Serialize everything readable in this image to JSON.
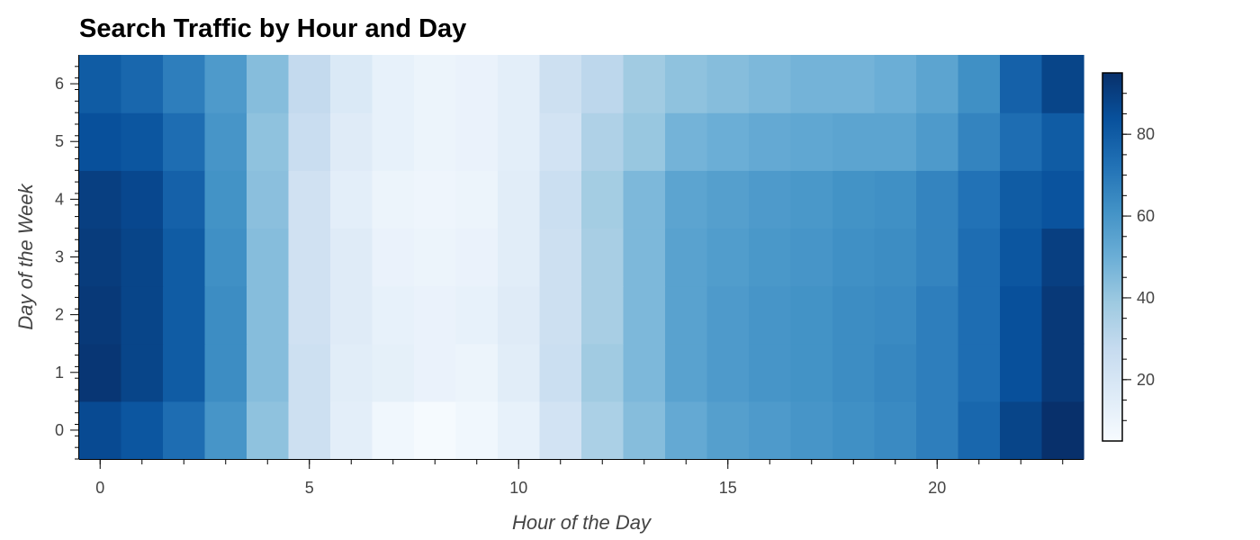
{
  "chart_data": {
    "type": "heatmap",
    "title": "Search Traffic by Hour and Day",
    "xlabel": "Hour of the Day",
    "ylabel": "Day of the Week",
    "x": [
      0,
      1,
      2,
      3,
      4,
      5,
      6,
      7,
      8,
      9,
      10,
      11,
      12,
      13,
      14,
      15,
      16,
      17,
      18,
      19,
      20,
      21,
      22,
      23
    ],
    "y": [
      0,
      1,
      2,
      3,
      4,
      5,
      6
    ],
    "x_ticks": [
      "0",
      "5",
      "10",
      "15",
      "20"
    ],
    "y_ticks": [
      "0",
      "1",
      "2",
      "3",
      "4",
      "5",
      "6"
    ],
    "xlim": [
      -0.5,
      23.5
    ],
    "ylim": [
      -0.5,
      6.5
    ],
    "color_range": [
      5,
      95
    ],
    "colorbar_ticks": [
      "20",
      "40",
      "60",
      "80"
    ],
    "colormap": [
      "#f7fbff",
      "#deebf7",
      "#c6dbef",
      "#9ecae1",
      "#6baed6",
      "#4292c6",
      "#2171b5",
      "#08519c",
      "#08306b"
    ],
    "grid": false,
    "values": [
      [
        86,
        82,
        74,
        60,
        42,
        24,
        14,
        8,
        6,
        8,
        12,
        22,
        35,
        44,
        52,
        56,
        58,
        60,
        62,
        64,
        68,
        76,
        88,
        95
      ],
      [
        93,
        88,
        80,
        63,
        44,
        24,
        15,
        13,
        11,
        10,
        15,
        25,
        38,
        46,
        55,
        58,
        60,
        61,
        63,
        65,
        68,
        74,
        84,
        92
      ],
      [
        92,
        88,
        80,
        63,
        44,
        23,
        16,
        12,
        11,
        12,
        16,
        24,
        36,
        46,
        55,
        58,
        60,
        61,
        63,
        64,
        68,
        74,
        84,
        92
      ],
      [
        91,
        88,
        80,
        62,
        44,
        23,
        16,
        11,
        10,
        11,
        15,
        24,
        36,
        46,
        55,
        57,
        59,
        60,
        62,
        63,
        66,
        74,
        82,
        90
      ],
      [
        90,
        87,
        78,
        61,
        43,
        23,
        14,
        10,
        9,
        10,
        15,
        25,
        37,
        46,
        54,
        56,
        58,
        59,
        61,
        62,
        66,
        72,
        80,
        83
      ],
      [
        84,
        82,
        74,
        60,
        42,
        26,
        16,
        12,
        10,
        11,
        14,
        22,
        34,
        40,
        48,
        50,
        52,
        53,
        54,
        54,
        58,
        66,
        74,
        80
      ],
      [
        80,
        76,
        68,
        58,
        44,
        28,
        18,
        12,
        10,
        11,
        14,
        24,
        30,
        38,
        42,
        44,
        46,
        48,
        48,
        50,
        54,
        62,
        78,
        88
      ]
    ]
  }
}
